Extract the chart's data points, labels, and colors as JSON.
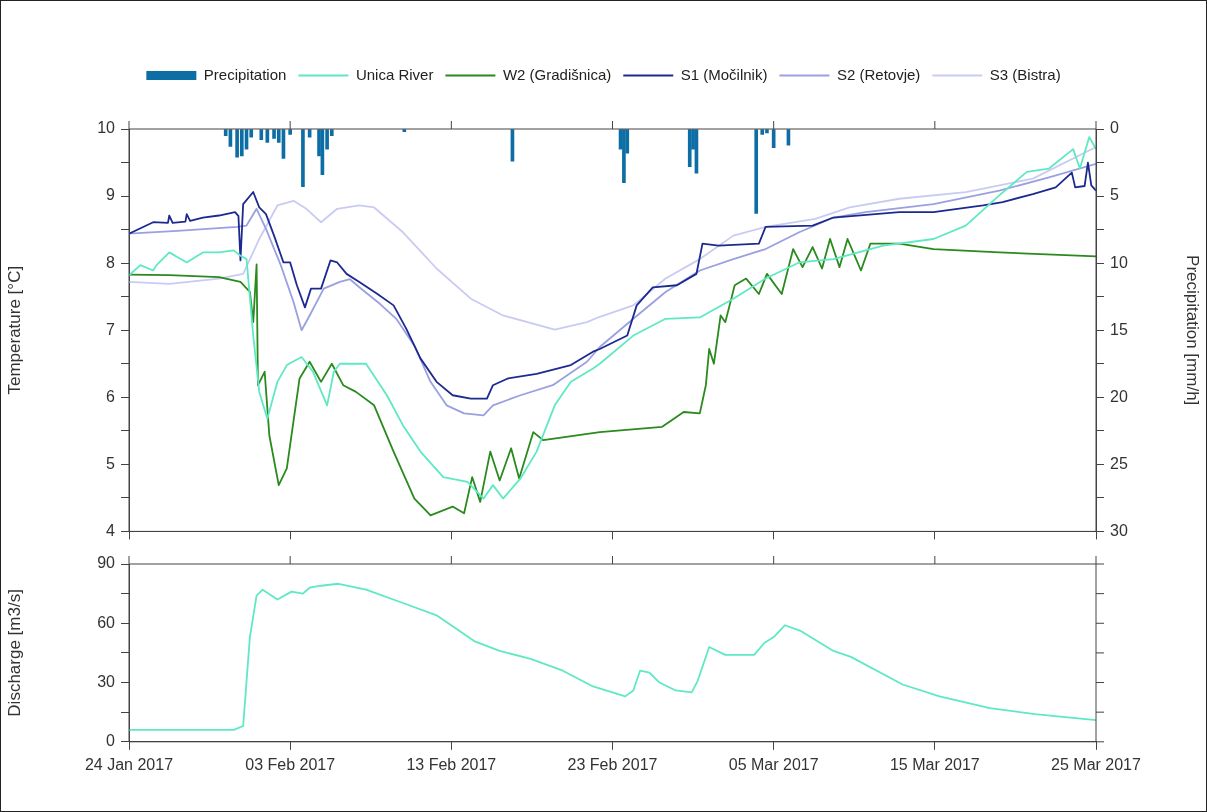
{
  "chart_data": [
    {
      "type": "line",
      "legend": "top",
      "ylabel": "Temperature [°C]",
      "y2label": "Precipitation [mm/h]",
      "tick_labels": "y",
      "xlim": [
        "2017-01-24",
        "2017-03-25"
      ],
      "xticks": [
        {
          "value": "2017-01-24",
          "label": null
        },
        {
          "value": "2017-02-03",
          "label": null
        },
        {
          "value": "2017-02-13",
          "label": null
        },
        {
          "value": "2017-02-23",
          "label": null
        },
        {
          "value": "2017-03-05",
          "label": null
        },
        {
          "value": "2017-03-15",
          "label": null
        },
        {
          "value": "2017-03-25",
          "label": null
        }
      ],
      "ylim": [
        4,
        10
      ],
      "yticks": [
        4,
        {
          "value": 4.5,
          "label": null
        },
        5,
        {
          "value": 5.5,
          "label": null
        },
        6,
        {
          "value": 6.5,
          "label": null
        },
        7,
        {
          "value": 7.5,
          "label": null
        },
        8,
        {
          "value": 8.5,
          "label": null
        },
        9,
        {
          "value": 9.5,
          "label": null
        },
        10
      ],
      "y2lim": [
        30,
        0
      ],
      "y2ticks": [
        0,
        {
          "value": 2.5,
          "label": null
        },
        5,
        {
          "value": 7.5,
          "label": null
        },
        10,
        {
          "value": 12.5,
          "label": null
        },
        15,
        {
          "value": 17.5,
          "label": null
        },
        20,
        {
          "value": 22.5,
          "label": null
        },
        25,
        {
          "value": 27.5,
          "label": null
        },
        30
      ],
      "series": [
        {
          "name": "Precipitation",
          "type": "bar",
          "axis": "y2",
          "color": "#0d6ea5",
          "x": [
            "2017-01-30T00:00",
            "2017-01-30T07:00",
            "2017-01-30T17:00",
            "2017-01-31T00:00",
            "2017-01-31T07:00",
            "2017-01-31T14:00",
            "2017-02-01T05:00",
            "2017-02-01T14:00",
            "2017-02-02T00:00",
            "2017-02-02T07:00",
            "2017-02-02T14:00",
            "2017-02-03T00:00",
            "2017-02-03T19:00",
            "2017-02-04T05:00",
            "2017-02-04T19:00",
            "2017-02-05T00:00",
            "2017-02-05T07:00",
            "2017-02-05T14:00",
            "2017-02-10T02:00",
            "2017-02-16T19:00",
            "2017-02-23T12:00",
            "2017-02-23T17:00",
            "2017-02-23T22:00",
            "2017-02-27T19:00",
            "2017-02-28T00:00",
            "2017-02-28T05:00",
            "2017-03-03T22:00",
            "2017-03-04T07:00",
            "2017-03-04T14:00",
            "2017-03-05T00:00",
            "2017-03-05T22:00"
          ],
          "values": [
            0.5,
            1.3,
            2.1,
            2.0,
            1.5,
            0.6,
            0.8,
            1.0,
            0.7,
            1.0,
            2.2,
            0.4,
            4.3,
            0.6,
            2.0,
            3.4,
            1.5,
            0.5,
            0.2,
            2.4,
            1.5,
            4.0,
            1.8,
            2.8,
            1.5,
            3.3,
            6.3,
            0.4,
            0.3,
            1.4,
            1.2
          ]
        },
        {
          "name": "Unica River",
          "color": "#5fe8c4",
          "x": [
            "2017-01-24T00:00",
            "2017-01-24T17:00",
            "2017-01-25T12:00",
            "2017-01-25T17:00",
            "2017-01-26T12:00",
            "2017-01-27T14:00",
            "2017-01-28T14:00",
            "2017-01-29T14:00",
            "2017-01-30T12:00",
            "2017-01-30T22:00",
            "2017-01-31T07:00",
            "2017-01-31T17:00",
            "2017-02-01T02:00",
            "2017-02-01T14:00",
            "2017-02-02T05:00",
            "2017-02-02T19:00",
            "2017-02-03T17:00",
            "2017-02-04T10:00",
            "2017-02-05T07:00",
            "2017-02-05T17:00",
            "2017-02-06T02:00",
            "2017-02-07T17:00",
            "2017-02-09T00:00",
            "2017-02-10T00:00",
            "2017-02-11T02:00",
            "2017-02-12T12:00",
            "2017-02-14T00:00",
            "2017-02-15T00:00",
            "2017-02-15T14:00",
            "2017-02-16T05:00",
            "2017-02-17T07:00",
            "2017-02-18T07:00",
            "2017-02-19T10:00",
            "2017-02-20T10:00",
            "2017-02-21T19:00",
            "2017-02-22T05:00",
            "2017-02-24T07:00",
            "2017-02-26T07:00",
            "2017-02-28T10:00",
            "2017-03-02T12:00",
            "2017-03-04T12:00",
            "2017-03-06T14:00",
            "2017-03-08T17:00",
            "2017-03-11T19:00",
            "2017-03-14T22:00",
            "2017-03-16T22:00",
            "2017-03-19T00:00",
            "2017-03-20T17:00",
            "2017-03-22T02:00",
            "2017-03-23T14:00",
            "2017-03-24T00:00",
            "2017-03-24T14:00",
            "2017-03-25T00:00"
          ],
          "values": [
            7.82,
            7.97,
            7.89,
            7.97,
            8.16,
            8.01,
            8.16,
            8.16,
            8.19,
            8.11,
            8.06,
            6.92,
            6.08,
            5.68,
            6.23,
            6.48,
            6.6,
            6.38,
            5.88,
            6.38,
            6.5,
            6.5,
            6.03,
            5.58,
            5.19,
            4.81,
            4.74,
            4.49,
            4.69,
            4.49,
            4.79,
            5.19,
            5.88,
            6.23,
            6.43,
            6.5,
            6.92,
            7.17,
            7.19,
            7.47,
            7.77,
            8.01,
            8.06,
            8.26,
            8.36,
            8.56,
            9.01,
            9.36,
            9.41,
            9.7,
            9.41,
            9.88,
            9.7
          ]
        },
        {
          "name": "W2 (Gradišnica)",
          "color": "#2a8a1e",
          "x": [
            "2017-01-24T00:00",
            "2017-01-26T12:00",
            "2017-01-29T14:00",
            "2017-01-30T22:00",
            "2017-01-31T12:00",
            "2017-01-31T17:00",
            "2017-01-31T22:00",
            "2017-02-01T00:00",
            "2017-02-01T10:00",
            "2017-02-01T17:00",
            "2017-02-02T07:00",
            "2017-02-02T19:00",
            "2017-02-03T14:00",
            "2017-02-04T05:00",
            "2017-02-04T22:00",
            "2017-02-05T14:00",
            "2017-02-06T07:00",
            "2017-02-07T02:00",
            "2017-02-08T05:00",
            "2017-02-09T10:00",
            "2017-02-10T17:00",
            "2017-02-11T17:00",
            "2017-02-13T02:00",
            "2017-02-13T19:00",
            "2017-02-14T07:00",
            "2017-02-14T19:00",
            "2017-02-15T10:00",
            "2017-02-16T00:00",
            "2017-02-16T17:00",
            "2017-02-17T05:00",
            "2017-02-18T02:00",
            "2017-02-18T17:00",
            "2017-02-22T05:00",
            "2017-02-26T02:00",
            "2017-02-27T10:00",
            "2017-02-28T10:00",
            "2017-02-28T19:00",
            "2017-03-01T00:00",
            "2017-03-01T07:00",
            "2017-03-01T17:00",
            "2017-03-02T00:00",
            "2017-03-02T14:00",
            "2017-03-03T07:00",
            "2017-03-04T02:00",
            "2017-03-04T14:00",
            "2017-03-05T12:00",
            "2017-03-06T05:00",
            "2017-03-06T19:00",
            "2017-03-07T10:00",
            "2017-03-08T00:00",
            "2017-03-08T12:00",
            "2017-03-09T02:00",
            "2017-03-09T14:00",
            "2017-03-10T10:00",
            "2017-03-11T00:00",
            "2017-03-12T19:00",
            "2017-03-14T22:00",
            "2017-03-19T00:00",
            "2017-03-25T00:00"
          ],
          "values": [
            7.83,
            7.82,
            7.79,
            7.72,
            7.57,
            7.12,
            7.98,
            6.18,
            6.38,
            5.43,
            4.69,
            4.94,
            6.28,
            6.53,
            6.23,
            6.5,
            6.18,
            6.08,
            5.88,
            5.19,
            4.49,
            4.24,
            4.37,
            4.27,
            4.81,
            4.44,
            5.19,
            4.76,
            5.24,
            4.79,
            5.48,
            5.36,
            5.48,
            5.56,
            5.78,
            5.76,
            6.18,
            6.72,
            6.5,
            7.22,
            7.12,
            7.67,
            7.77,
            7.54,
            7.84,
            7.54,
            8.21,
            7.94,
            8.24,
            7.92,
            8.36,
            7.94,
            8.36,
            7.89,
            8.29,
            8.29,
            8.21,
            8.16,
            8.1
          ]
        },
        {
          "name": "S1 (Močilnik)",
          "color": "#1c2a8f",
          "x": [
            "2017-01-24T00:00",
            "2017-01-25T12:00",
            "2017-01-26T10:00",
            "2017-01-26T12:00",
            "2017-01-26T17:00",
            "2017-01-27T12:00",
            "2017-01-27T14:00",
            "2017-01-27T19:00",
            "2017-01-28T14:00",
            "2017-01-29T14:00",
            "2017-01-30T14:00",
            "2017-01-30T19:00",
            "2017-01-30T22:00",
            "2017-01-31T02:00",
            "2017-01-31T17:00",
            "2017-02-01T02:00",
            "2017-02-01T12:00",
            "2017-02-02T00:00",
            "2017-02-02T14:00",
            "2017-02-03T00:00",
            "2017-02-03T10:00",
            "2017-02-03T22:00",
            "2017-02-04T07:00",
            "2017-02-04T22:00",
            "2017-02-05T12:00",
            "2017-02-05T22:00",
            "2017-02-06T12:00",
            "2017-02-07T07:00",
            "2017-02-08T10:00",
            "2017-02-09T10:00",
            "2017-02-10T05:00",
            "2017-02-11T02:00",
            "2017-02-12T02:00",
            "2017-02-13T02:00",
            "2017-02-14T05:00",
            "2017-02-15T05:00",
            "2017-02-15T14:00",
            "2017-02-16T12:00",
            "2017-02-18T07:00",
            "2017-02-20T10:00",
            "2017-02-21T19:00",
            "2017-02-22T05:00",
            "2017-02-23T22:00",
            "2017-02-24T12:00",
            "2017-02-25T12:00",
            "2017-02-27T00:00",
            "2017-02-28T05:00",
            "2017-02-28T14:00",
            "2017-03-01T14:00",
            "2017-03-04T02:00",
            "2017-03-04T12:00",
            "2017-03-07T10:00",
            "2017-03-08T17:00",
            "2017-03-12T19:00",
            "2017-03-14T22:00",
            "2017-03-18T00:00",
            "2017-03-19T05:00",
            "2017-03-21T02:00",
            "2017-03-22T12:00",
            "2017-03-23T12:00",
            "2017-03-23T17:00",
            "2017-03-24T07:00",
            "2017-03-24T12:00",
            "2017-03-24T17:00",
            "2017-03-25T00:00"
          ],
          "values": [
            8.44,
            8.61,
            8.6,
            8.71,
            8.6,
            8.62,
            8.73,
            8.63,
            8.68,
            8.71,
            8.76,
            8.7,
            8.04,
            8.88,
            9.06,
            8.83,
            8.73,
            8.41,
            8.01,
            8.01,
            7.67,
            7.34,
            7.62,
            7.62,
            8.04,
            8.01,
            7.84,
            7.72,
            7.54,
            7.37,
            7.02,
            6.58,
            6.23,
            6.03,
            5.98,
            5.98,
            6.18,
            6.28,
            6.35,
            6.48,
            6.68,
            6.72,
            6.92,
            7.37,
            7.64,
            7.67,
            7.84,
            8.29,
            8.26,
            8.29,
            8.54,
            8.56,
            8.68,
            8.76,
            8.76,
            8.86,
            8.91,
            9.03,
            9.13,
            9.35,
            9.13,
            9.15,
            9.5,
            9.16,
            9.08
          ]
        },
        {
          "name": "S2 (Retovje)",
          "color": "#9aa0e0",
          "x": [
            "2017-01-24T00:00",
            "2017-01-27T00:00",
            "2017-01-30T17:00",
            "2017-01-31T07:00",
            "2017-01-31T22:00",
            "2017-02-01T12:00",
            "2017-02-02T10:00",
            "2017-02-03T05:00",
            "2017-02-03T17:00",
            "2017-02-04T05:00",
            "2017-02-05T02:00",
            "2017-02-06T02:00",
            "2017-02-06T17:00",
            "2017-02-07T07:00",
            "2017-02-08T14:00",
            "2017-02-09T14:00",
            "2017-02-10T17:00",
            "2017-02-11T17:00",
            "2017-02-12T17:00",
            "2017-02-13T19:00",
            "2017-02-15T00:00",
            "2017-02-15T14:00",
            "2017-02-17T07:00",
            "2017-02-19T07:00",
            "2017-02-21T10:00",
            "2017-02-22T05:00",
            "2017-02-24T07:00",
            "2017-02-26T07:00",
            "2017-02-28T10:00",
            "2017-03-02T12:00",
            "2017-03-04T12:00",
            "2017-03-06T14:00",
            "2017-03-08T17:00",
            "2017-03-10T17:00",
            "2017-03-14T22:00",
            "2017-03-19T00:00",
            "2017-03-22T02:00",
            "2017-03-25T00:00"
          ],
          "values": [
            8.44,
            8.48,
            8.54,
            8.56,
            8.81,
            8.51,
            7.97,
            7.42,
            7.0,
            7.22,
            7.62,
            7.72,
            7.76,
            7.64,
            7.39,
            7.17,
            6.77,
            6.23,
            5.88,
            5.76,
            5.73,
            5.88,
            6.03,
            6.18,
            6.53,
            6.75,
            7.17,
            7.57,
            7.89,
            8.06,
            8.21,
            8.46,
            8.68,
            8.76,
            8.88,
            9.08,
            9.28,
            9.48
          ]
        },
        {
          "name": "S3 (Bistra)",
          "color": "#c9cbf2",
          "x": [
            "2017-01-24T00:00",
            "2017-01-26T12:00",
            "2017-01-29T14:00",
            "2017-01-31T02:00",
            "2017-02-01T02:00",
            "2017-02-02T05:00",
            "2017-02-03T05:00",
            "2017-02-04T00:00",
            "2017-02-04T22:00",
            "2017-02-05T22:00",
            "2017-02-07T07:00",
            "2017-02-08T05:00",
            "2017-02-10T00:00",
            "2017-02-12T02:00",
            "2017-02-14T05:00",
            "2017-02-16T05:00",
            "2017-02-19T10:00",
            "2017-02-21T10:00",
            "2017-02-22T05:00",
            "2017-02-24T07:00",
            "2017-02-26T07:00",
            "2017-02-28T10:00",
            "2017-03-02T12:00",
            "2017-03-04T12:00",
            "2017-03-07T14:00",
            "2017-03-09T17:00",
            "2017-03-12T19:00",
            "2017-03-16T22:00",
            "2017-03-21T02:00",
            "2017-03-25T00:00"
          ],
          "values": [
            7.72,
            7.69,
            7.77,
            7.84,
            8.36,
            8.86,
            8.93,
            8.81,
            8.61,
            8.81,
            8.86,
            8.83,
            8.46,
            7.92,
            7.47,
            7.22,
            7.01,
            7.12,
            7.2,
            7.37,
            7.77,
            8.06,
            8.41,
            8.54,
            8.66,
            8.83,
            8.96,
            9.06,
            9.26,
            9.73
          ]
        }
      ]
    },
    {
      "type": "line",
      "ylabel": "Discharge [m3/s]",
      "xlim": [
        "2017-01-24",
        "2017-03-25"
      ],
      "xticks": [
        {
          "value": "2017-01-24",
          "label": "24 Jan 2017"
        },
        {
          "value": "2017-02-03",
          "label": "03 Feb 2017"
        },
        {
          "value": "2017-02-13",
          "label": "13 Feb 2017"
        },
        {
          "value": "2017-02-23",
          "label": "23 Feb 2017"
        },
        {
          "value": "2017-03-05",
          "label": "05 Mar 2017"
        },
        {
          "value": "2017-03-15",
          "label": "15 Mar 2017"
        },
        {
          "value": "2017-03-25",
          "label": "25 Mar 2017"
        }
      ],
      "ylim": [
        0,
        90
      ],
      "yticks": [
        0,
        {
          "value": 15,
          "label": null
        },
        30,
        {
          "value": 45,
          "label": null
        },
        60,
        {
          "value": 75,
          "label": null
        },
        90
      ],
      "series": [
        {
          "color": "#5fe8c4",
          "x": [
            "2017-01-24T00:00",
            "2017-01-30T12:00",
            "2017-01-31T02:00",
            "2017-01-31T12:00",
            "2017-01-31T22:00",
            "2017-02-01T07:00",
            "2017-02-02T05:00",
            "2017-02-03T02:00",
            "2017-02-03T19:00",
            "2017-02-04T05:00",
            "2017-02-04T22:00",
            "2017-02-06T00:00",
            "2017-02-07T17:00",
            "2017-02-10T02:00",
            "2017-02-12T02:00",
            "2017-02-14T10:00",
            "2017-02-16T00:00",
            "2017-02-17T22:00",
            "2017-02-19T22:00",
            "2017-02-21T19:00",
            "2017-02-23T19:00",
            "2017-02-24T07:00",
            "2017-02-24T17:00",
            "2017-02-25T07:00",
            "2017-02-25T22:00",
            "2017-02-26T22:00",
            "2017-02-27T22:00",
            "2017-02-28T07:00",
            "2017-03-01T00:00",
            "2017-03-02T00:00",
            "2017-03-03T19:00",
            "2017-03-04T10:00",
            "2017-03-05T00:00",
            "2017-03-05T17:00",
            "2017-03-06T17:00",
            "2017-03-08T17:00",
            "2017-03-09T19:00",
            "2017-03-13T00:00",
            "2017-03-15T07:00",
            "2017-03-18T10:00",
            "2017-03-21T05:00",
            "2017-03-25T00:00"
          ],
          "values": [
            6,
            6,
            8,
            53,
            74,
            77,
            72,
            76,
            75,
            78,
            79,
            80,
            77,
            70,
            64,
            51,
            46,
            42,
            36,
            28,
            23,
            26,
            36,
            35,
            30,
            26,
            25,
            31,
            48,
            44,
            44,
            50,
            53,
            59,
            56,
            46,
            43,
            29,
            23,
            17,
            14,
            11
          ]
        }
      ]
    }
  ]
}
